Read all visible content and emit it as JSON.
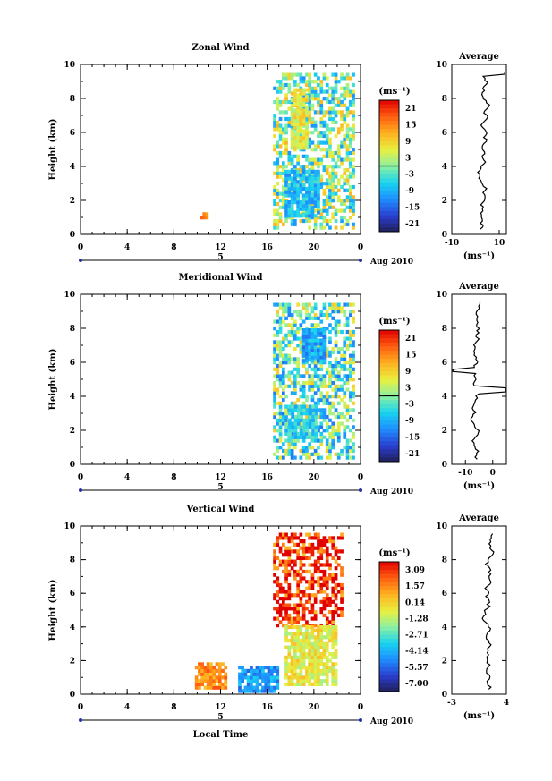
{
  "chart_data": [
    {
      "type": "heatmap",
      "title": "Zonal Wind",
      "ylabel": "Height (km)",
      "xticks": [
        "0",
        "4",
        "8",
        "12",
        "16",
        "20",
        "0"
      ],
      "yticks": [
        "0",
        "2",
        "4",
        "6",
        "8",
        "10"
      ],
      "xlim": [
        0,
        24
      ],
      "ylim": [
        0,
        10
      ],
      "date_marker": "5",
      "date_label": "Aug 2010",
      "colorbar": {
        "unit": "(ms⁻¹)",
        "ticks": [
          "21",
          "15",
          "9",
          "3",
          "-3",
          "-9",
          "-15",
          "-21"
        ],
        "range": [
          -24,
          24
        ]
      },
      "profile": {
        "title": "Average",
        "xticks": [
          "-10",
          "10"
        ],
        "xlim": [
          -10,
          10
        ],
        "xlabel": "(ms⁻¹)",
        "yticks": [
          "0",
          "2",
          "4",
          "6",
          "8",
          "10"
        ]
      },
      "regions": [
        {
          "t": [
            16.5,
            23.5
          ],
          "h": [
            0.3,
            9.5
          ],
          "value": 0
        },
        {
          "t": [
            17.5,
            20.5
          ],
          "h": [
            1.0,
            3.8
          ],
          "value": -8
        },
        {
          "t": [
            18.0,
            19.5
          ],
          "h": [
            5.0,
            8.5
          ],
          "value": 6
        },
        {
          "t": [
            10.2,
            10.8
          ],
          "h": [
            0.9,
            1.2
          ],
          "value": 14
        }
      ]
    },
    {
      "type": "heatmap",
      "title": "Meridional Wind",
      "ylabel": "Height (km)",
      "xticks": [
        "0",
        "4",
        "8",
        "12",
        "16",
        "20",
        "0"
      ],
      "yticks": [
        "0",
        "2",
        "4",
        "6",
        "8",
        "10"
      ],
      "xlim": [
        0,
        24
      ],
      "ylim": [
        0,
        10
      ],
      "date_marker": "5",
      "date_label": "Aug 2010",
      "colorbar": {
        "unit": "(ms⁻¹)",
        "ticks": [
          "21",
          "15",
          "9",
          "3",
          "-3",
          "-9",
          "-15",
          "-21"
        ],
        "range": [
          -24,
          24
        ]
      },
      "profile": {
        "title": "Average",
        "xticks": [
          "-10",
          "0"
        ],
        "xlim": [
          -15,
          5
        ],
        "xlabel": "(ms⁻¹)",
        "yticks": [
          "0",
          "2",
          "4",
          "6",
          "8",
          "10"
        ]
      },
      "regions": [
        {
          "t": [
            16.5,
            23.5
          ],
          "h": [
            0.3,
            9.5
          ],
          "value": -2
        },
        {
          "t": [
            17.8,
            20.2
          ],
          "h": [
            1.5,
            3.5
          ],
          "value": -6
        },
        {
          "t": [
            19.0,
            21.0
          ],
          "h": [
            6.0,
            8.0
          ],
          "value": -10
        }
      ]
    },
    {
      "type": "heatmap",
      "title": "Vertical Wind",
      "ylabel": "Height (km)",
      "xlabel": "Local Time",
      "xticks": [
        "0",
        "4",
        "8",
        "12",
        "16",
        "20",
        "0"
      ],
      "yticks": [
        "0",
        "2",
        "4",
        "6",
        "8",
        "10"
      ],
      "xlim": [
        0,
        24
      ],
      "ylim": [
        0,
        10
      ],
      "date_marker": "5",
      "date_label": "Aug 2010",
      "colorbar": {
        "unit": "(ms⁻¹)",
        "ticks": [
          "3.09",
          "1.57",
          "0.14",
          "-1.28",
          "-2.71",
          "-4.14",
          "-5.57",
          "-7.00"
        ],
        "range": [
          -7.7,
          3.8
        ]
      },
      "profile": {
        "title": "Average",
        "xticks": [
          "-3",
          "4"
        ],
        "xlim": [
          -3,
          4
        ],
        "xlabel": "(ms⁻¹)",
        "yticks": [
          "0",
          "2",
          "4",
          "6",
          "8",
          "10"
        ]
      },
      "regions": [
        {
          "t": [
            16.5,
            22.5
          ],
          "h": [
            4.0,
            9.5
          ],
          "value": 3.5
        },
        {
          "t": [
            17.5,
            22.0
          ],
          "h": [
            0.5,
            4.0
          ],
          "value": -0.5
        },
        {
          "t": [
            13.5,
            17.0
          ],
          "h": [
            0.1,
            1.5
          ],
          "value": -4.5
        },
        {
          "t": [
            9.8,
            12.5
          ],
          "h": [
            0.3,
            1.8
          ],
          "value": 1.5
        }
      ]
    }
  ]
}
